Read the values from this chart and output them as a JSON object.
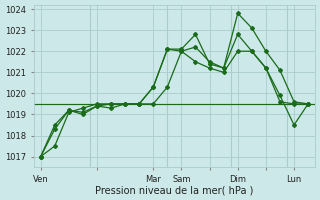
{
  "xlabel": "Pression niveau de la mer( hPa )",
  "bg_color": "#cce8e8",
  "grid_color": "#aacccc",
  "line_color": "#1a6b1a",
  "ylim": [
    1016.5,
    1024.2
  ],
  "ytick_min": 1017,
  "ytick_max": 1024,
  "x_tick_labels": [
    "Ven",
    "",
    "Mar",
    "Sam",
    "",
    "Dim",
    "",
    "Lun"
  ],
  "x_tick_positions": [
    0,
    4,
    8,
    10,
    12,
    14,
    16,
    18
  ],
  "xlim_min": -0.5,
  "xlim_max": 19.5,
  "line1_x": [
    0,
    1,
    2,
    3,
    4,
    5,
    6,
    7,
    8,
    9,
    10,
    11,
    12,
    13,
    14,
    15,
    16,
    17,
    18,
    19
  ],
  "line1_y": [
    1017.0,
    1017.5,
    1019.1,
    1019.3,
    1019.5,
    1019.5,
    1019.5,
    1019.5,
    1019.5,
    1020.3,
    1022.0,
    1021.5,
    1021.2,
    1021.0,
    1022.0,
    1022.0,
    1021.2,
    1019.6,
    1019.5,
    1019.5
  ],
  "line2_x": [
    0,
    1,
    2,
    3,
    4,
    5,
    6,
    7,
    8,
    9,
    10,
    11,
    12,
    13,
    14,
    15,
    16,
    17,
    18,
    19
  ],
  "line2_y": [
    1017.0,
    1018.3,
    1019.2,
    1019.1,
    1019.4,
    1019.3,
    1019.5,
    1019.5,
    1020.3,
    1022.1,
    1022.0,
    1022.2,
    1021.5,
    1021.2,
    1022.8,
    1022.0,
    1021.2,
    1019.9,
    1018.5,
    1019.5
  ],
  "line3_x": [
    0,
    1,
    2,
    3,
    4,
    5,
    6,
    7,
    8,
    9,
    10,
    11,
    12,
    13,
    14,
    15,
    16,
    17,
    18,
    19
  ],
  "line3_y": [
    1017.0,
    1018.5,
    1019.2,
    1019.0,
    1019.4,
    1019.5,
    1019.5,
    1019.5,
    1020.3,
    1022.1,
    1022.1,
    1022.8,
    1021.4,
    1021.2,
    1023.8,
    1023.1,
    1022.0,
    1021.1,
    1019.6,
    1019.5
  ],
  "vline_x_positions": [
    3.5,
    9.0,
    13.5,
    17.5
  ],
  "hline_y": 1019.5,
  "marker": "D",
  "marker_size": 2.0,
  "line_width": 0.9,
  "xlabel_fontsize": 7,
  "tick_fontsize": 6
}
